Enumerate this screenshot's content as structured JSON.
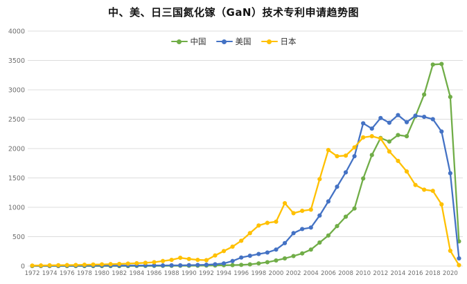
{
  "title": "中、美、日三国氮化镓（GaN）技术专利申请趋势图",
  "legend": {
    "position": "top",
    "items": [
      {
        "label": "中国",
        "color": "#70AD47",
        "key": "china"
      },
      {
        "label": "美国",
        "color": "#4472C4",
        "key": "usa"
      },
      {
        "label": "日本",
        "color": "#FFC000",
        "key": "japan"
      }
    ]
  },
  "colors": {
    "china_green": "#70AD47",
    "usa_blue": "#4472C4",
    "japan_yellow": "#FFC000",
    "gridline": "#DCDCDC",
    "axis_label": "#6E6E6E",
    "title_text": "#111111"
  },
  "chart_data": {
    "type": "line",
    "title": "中、美、日三国氮化镓（GaN）技术专利申请趋势图",
    "xlabel": "",
    "ylabel": "",
    "x": [
      1972,
      1973,
      1974,
      1975,
      1976,
      1977,
      1978,
      1979,
      1980,
      1981,
      1982,
      1983,
      1984,
      1985,
      1986,
      1987,
      1988,
      1989,
      1990,
      1991,
      1992,
      1993,
      1994,
      1995,
      1996,
      1997,
      1998,
      1999,
      2000,
      2001,
      2002,
      2003,
      2004,
      2005,
      2006,
      2007,
      2008,
      2009,
      2010,
      2011,
      2012,
      2013,
      2014,
      2015,
      2016,
      2017,
      2018,
      2019,
      2020,
      2021
    ],
    "x_tick_labels": [
      "1972",
      "1974",
      "1976",
      "1978",
      "1980",
      "1982",
      "1984",
      "1986",
      "1988",
      "1990",
      "1992",
      "1994",
      "1996",
      "1998",
      "2000",
      "2002",
      "2004",
      "2006",
      "2008",
      "2010",
      "2012",
      "2014",
      "2016",
      "2018",
      "2020"
    ],
    "y_ticks": [
      0,
      500,
      1000,
      1500,
      2000,
      2500,
      3000,
      3500,
      4000
    ],
    "ylim": [
      0,
      4000
    ],
    "grid": true,
    "legend_position": "top",
    "series": [
      {
        "name": "中国",
        "color": "#70AD47",
        "values": [
          0,
          0,
          0,
          0,
          0,
          0,
          0,
          0,
          0,
          0,
          0,
          0,
          2,
          2,
          3,
          3,
          4,
          5,
          5,
          6,
          8,
          10,
          14,
          16,
          20,
          28,
          45,
          65,
          95,
          130,
          170,
          215,
          280,
          400,
          520,
          680,
          840,
          980,
          1490,
          1890,
          2180,
          2120,
          2230,
          2210,
          2550,
          2920,
          3430,
          3440,
          2880,
          420
        ]
      },
      {
        "name": "美国",
        "color": "#4472C4",
        "values": [
          3,
          3,
          4,
          4,
          5,
          5,
          6,
          6,
          7,
          7,
          8,
          8,
          9,
          9,
          10,
          10,
          12,
          12,
          15,
          18,
          22,
          30,
          45,
          85,
          145,
          175,
          205,
          230,
          280,
          390,
          560,
          630,
          655,
          860,
          1100,
          1350,
          1595,
          1870,
          2430,
          2340,
          2520,
          2440,
          2570,
          2450,
          2560,
          2540,
          2500,
          2290,
          1580,
          130
        ]
      },
      {
        "name": "日本",
        "color": "#FFC000",
        "values": [
          8,
          10,
          12,
          14,
          16,
          18,
          22,
          25,
          28,
          32,
          36,
          42,
          48,
          55,
          65,
          85,
          105,
          140,
          120,
          105,
          100,
          180,
          255,
          330,
          430,
          560,
          690,
          735,
          755,
          1070,
          900,
          940,
          960,
          1480,
          1975,
          1870,
          1880,
          2020,
          2190,
          2210,
          2170,
          1950,
          1790,
          1610,
          1380,
          1300,
          1280,
          1050,
          260,
          15
        ]
      }
    ]
  }
}
